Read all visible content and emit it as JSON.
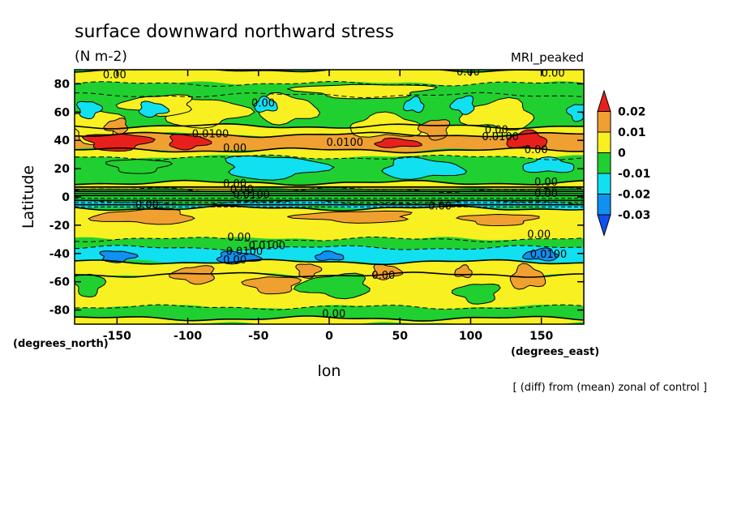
{
  "chart_data": {
    "type": "heatmap",
    "title": "surface downward northward stress",
    "units": "(N m-2)",
    "model": "MRI_peaked",
    "xlabel": "lon",
    "ylabel": "Latitude",
    "x_unit_label": "(degrees_east)",
    "y_unit_label": "(degrees_north)",
    "note": "[ (diff) from (mean) zonal of control ]",
    "xlim": [
      -180,
      180
    ],
    "ylim": [
      -90,
      90
    ],
    "x_ticks": [
      -150,
      -100,
      -50,
      0,
      50,
      100,
      150
    ],
    "y_ticks": [
      -80,
      -60,
      -40,
      -20,
      0,
      20,
      40,
      60,
      80
    ],
    "colorbar": {
      "levels": [
        0.02,
        0.01,
        0,
        -0.01,
        -0.02,
        -0.03
      ],
      "level_labels": [
        "0.02",
        "0.01",
        "0",
        "-0.01",
        "-0.02",
        "-0.03"
      ],
      "colors": [
        {
          "range": "> 0.02",
          "color": "#e8201c"
        },
        {
          "range": "0.01 to 0.02",
          "color": "#f0a030"
        },
        {
          "range": "0 to 0.01",
          "color": "#f8f020"
        },
        {
          "range": "-0.01 to 0",
          "color": "#20d030"
        },
        {
          "range": "-0.02 to -0.01",
          "color": "#10e0f0"
        },
        {
          "range": "-0.03 to -0.02",
          "color": "#1090f0"
        },
        {
          "range": "< -0.03",
          "color": "#1050f0"
        }
      ]
    },
    "bands": [
      {
        "lat": [
          80,
          90
        ],
        "level": "0 to 0.01"
      },
      {
        "lat": [
          72,
          80
        ],
        "level": "-0.01 to 0"
      },
      {
        "lat": [
          50,
          72
        ],
        "level": "-0.01 to 0"
      },
      {
        "lat": [
          44,
          50
        ],
        "level": "0 to 0.01"
      },
      {
        "lat": [
          33,
          44
        ],
        "level": "0.01 to 0.02"
      },
      {
        "lat": [
          28,
          33
        ],
        "level": "0 to 0.01"
      },
      {
        "lat": [
          10,
          28
        ],
        "level": "-0.01 to 0"
      },
      {
        "lat": [
          5,
          10
        ],
        "level": "0 to 0.01"
      },
      {
        "lat": [
          -4,
          5
        ],
        "level": "-0.01 to 0"
      },
      {
        "lat": [
          -8,
          -4
        ],
        "level": "-0.02 to -0.01"
      },
      {
        "lat": [
          -30,
          -8
        ],
        "level": "0 to 0.01"
      },
      {
        "lat": [
          -36,
          -30
        ],
        "level": "-0.01 to 0"
      },
      {
        "lat": [
          -46,
          -36
        ],
        "level": "-0.02 to -0.01"
      },
      {
        "lat": [
          -55,
          -46
        ],
        "level": "0 to 0.01"
      },
      {
        "lat": [
          -78,
          -55
        ],
        "level": "0 to 0.01"
      },
      {
        "lat": [
          -86,
          -78
        ],
        "level": "-0.01 to 0"
      },
      {
        "lat": [
          -90,
          -86
        ],
        "level": "0 to 0.01"
      }
    ],
    "patches": [
      {
        "lon": -165,
        "lat": 50,
        "rlon": 18,
        "rlat": 12,
        "level": "0 to 0.01"
      },
      {
        "lon": -90,
        "lat": 60,
        "rlon": 30,
        "rlat": 10,
        "level": "0 to 0.01"
      },
      {
        "lon": -30,
        "lat": 62,
        "rlon": 20,
        "rlat": 10,
        "level": "0 to 0.01"
      },
      {
        "lon": 40,
        "lat": 50,
        "rlon": 25,
        "rlat": 8,
        "level": "0 to 0.01"
      },
      {
        "lon": 120,
        "lat": 58,
        "rlon": 25,
        "rlat": 10,
        "level": "0 to 0.01"
      },
      {
        "lon": -120,
        "lat": 65,
        "rlon": 25,
        "rlat": 7,
        "level": "0 to 0.01"
      },
      {
        "lon": 25,
        "lat": 75,
        "rlon": 45,
        "rlat": 5,
        "level": "0 to 0.01"
      },
      {
        "lon": -170,
        "lat": 62,
        "rlon": 8,
        "rlat": 6,
        "level": "-0.02 to -0.01"
      },
      {
        "lon": -125,
        "lat": 62,
        "rlon": 10,
        "rlat": 5,
        "level": "-0.02 to -0.01"
      },
      {
        "lon": -45,
        "lat": 65,
        "rlon": 8,
        "rlat": 5,
        "level": "-0.02 to -0.01"
      },
      {
        "lon": 60,
        "lat": 65,
        "rlon": 7,
        "rlat": 5,
        "level": "-0.02 to -0.01"
      },
      {
        "lon": 95,
        "lat": 65,
        "rlon": 8,
        "rlat": 6,
        "level": "-0.02 to -0.01"
      },
      {
        "lon": 175,
        "lat": 60,
        "rlon": 6,
        "rlat": 6,
        "level": "-0.02 to -0.01"
      },
      {
        "lon": -150,
        "lat": 39,
        "rlon": 22,
        "rlat": 6,
        "level": "> 0.02"
      },
      {
        "lon": -100,
        "lat": 39,
        "rlon": 14,
        "rlat": 5,
        "level": "> 0.02"
      },
      {
        "lon": 48,
        "lat": 38,
        "rlon": 16,
        "rlat": 3,
        "level": "> 0.02"
      },
      {
        "lon": 140,
        "lat": 40,
        "rlon": 14,
        "rlat": 6,
        "level": "> 0.02"
      },
      {
        "lon": -150,
        "lat": 50,
        "rlon": 8,
        "rlat": 5,
        "level": "0.01 to 0.02"
      },
      {
        "lon": 75,
        "lat": 48,
        "rlon": 10,
        "rlat": 7,
        "level": "0.01 to 0.02"
      },
      {
        "lon": -135,
        "lat": 22,
        "rlon": 20,
        "rlat": 5,
        "level": "-0.01 to 0"
      },
      {
        "lon": -40,
        "lat": 21,
        "rlon": 35,
        "rlat": 8,
        "level": "-0.02 to -0.01"
      },
      {
        "lon": 65,
        "lat": 20,
        "rlon": 28,
        "rlat": 7,
        "level": "-0.02 to -0.01"
      },
      {
        "lon": 155,
        "lat": 22,
        "rlon": 18,
        "rlat": 5,
        "level": "-0.02 to -0.01"
      },
      {
        "lon": -130,
        "lat": -14,
        "rlon": 35,
        "rlat": 5,
        "level": "0.01 to 0.02"
      },
      {
        "lon": 20,
        "lat": -14,
        "rlon": 40,
        "rlat": 4,
        "level": "0.01 to 0.02"
      },
      {
        "lon": 120,
        "lat": -16,
        "rlon": 25,
        "rlat": 4,
        "level": "0.01 to 0.02"
      },
      {
        "lon": -150,
        "lat": -42,
        "rlon": 12,
        "rlat": 4,
        "level": "-0.03 to -0.02"
      },
      {
        "lon": -65,
        "lat": -43,
        "rlon": 15,
        "rlat": 4,
        "level": "-0.03 to -0.02"
      },
      {
        "lon": 0,
        "lat": -42,
        "rlon": 10,
        "rlat": 3,
        "level": "-0.03 to -0.02"
      },
      {
        "lon": 150,
        "lat": -41,
        "rlon": 12,
        "rlat": 4,
        "level": "-0.03 to -0.02"
      },
      {
        "lon": -95,
        "lat": -55,
        "rlon": 15,
        "rlat": 6,
        "level": "0.01 to 0.02"
      },
      {
        "lon": -40,
        "lat": -62,
        "rlon": 18,
        "rlat": 6,
        "level": "0.01 to 0.02"
      },
      {
        "lon": -15,
        "lat": -52,
        "rlon": 8,
        "rlat": 5,
        "level": "0.01 to 0.02"
      },
      {
        "lon": 40,
        "lat": -53,
        "rlon": 10,
        "rlat": 5,
        "level": "0.01 to 0.02"
      },
      {
        "lon": 140,
        "lat": -57,
        "rlon": 12,
        "rlat": 8,
        "level": "0.01 to 0.02"
      },
      {
        "lon": 95,
        "lat": -53,
        "rlon": 6,
        "rlat": 4,
        "level": "0.01 to 0.02"
      },
      {
        "lon": 5,
        "lat": -63,
        "rlon": 25,
        "rlat": 8,
        "level": "-0.01 to 0"
      },
      {
        "lon": 105,
        "lat": -68,
        "rlon": 15,
        "rlat": 7,
        "level": "-0.01 to 0"
      },
      {
        "lon": -170,
        "lat": -62,
        "rlon": 10,
        "rlat": 8,
        "level": "-0.01 to 0"
      }
    ],
    "contour_labels": [
      {
        "text": "0.00",
        "lon": -160,
        "lat": 84
      },
      {
        "text": "0.00",
        "lon": 90,
        "lat": 86
      },
      {
        "text": "0.00",
        "lon": 150,
        "lat": 85
      },
      {
        "text": "0.00",
        "lon": -55,
        "lat": 64
      },
      {
        "text": "0.0100",
        "lon": -97,
        "lat": 42
      },
      {
        "text": "0.00",
        "lon": -75,
        "lat": 32
      },
      {
        "text": "0.0100",
        "lon": -2,
        "lat": 36
      },
      {
        "text": "0.0100",
        "lon": 108,
        "lat": 40
      },
      {
        "text": "0.00",
        "lon": 110,
        "lat": 45
      },
      {
        "text": "0.00",
        "lon": 138,
        "lat": 31
      },
      {
        "text": "0.00",
        "lon": -75,
        "lat": 7
      },
      {
        "text": "0.00",
        "lon": -70,
        "lat": 3
      },
      {
        "text": "0.0100",
        "lon": -68,
        "lat": -1
      },
      {
        "text": "0.00",
        "lon": -137,
        "lat": -8
      },
      {
        "text": "0.00",
        "lon": 70,
        "lat": -9
      },
      {
        "text": "0.00",
        "lon": 145,
        "lat": 8
      },
      {
        "text": "0.00",
        "lon": 145,
        "lat": 0
      },
      {
        "text": "0.00",
        "lon": -72,
        "lat": -31
      },
      {
        "text": "0.0100",
        "lon": -57,
        "lat": -37
      },
      {
        "text": "0.0100",
        "lon": -73,
        "lat": -41
      },
      {
        "text": "0.00",
        "lon": -75,
        "lat": -47
      },
      {
        "text": "0.00",
        "lon": 140,
        "lat": -29
      },
      {
        "text": "0.0100",
        "lon": 142,
        "lat": -43
      },
      {
        "text": "0.00",
        "lon": 30,
        "lat": -58
      },
      {
        "text": "0.00",
        "lon": -5,
        "lat": -85
      }
    ]
  }
}
